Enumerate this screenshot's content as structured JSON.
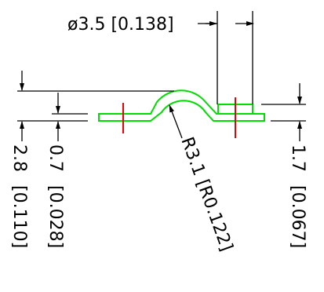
{
  "colors": {
    "part_outline": "#00dd00",
    "centerline": "#ee0000",
    "dimension": "#000000",
    "background": "#ffffff"
  },
  "dimensions": {
    "hole_diameter": "ø3.5 [0.138]",
    "radius": "R3.1 [R0.122]",
    "overall_height_value": "2.8",
    "overall_height_inch": "[0.110]",
    "thickness_value": "0.7",
    "thickness_inch": "[0.028]",
    "boss_height_value": "1.7",
    "boss_height_inch": "[0.067]"
  }
}
